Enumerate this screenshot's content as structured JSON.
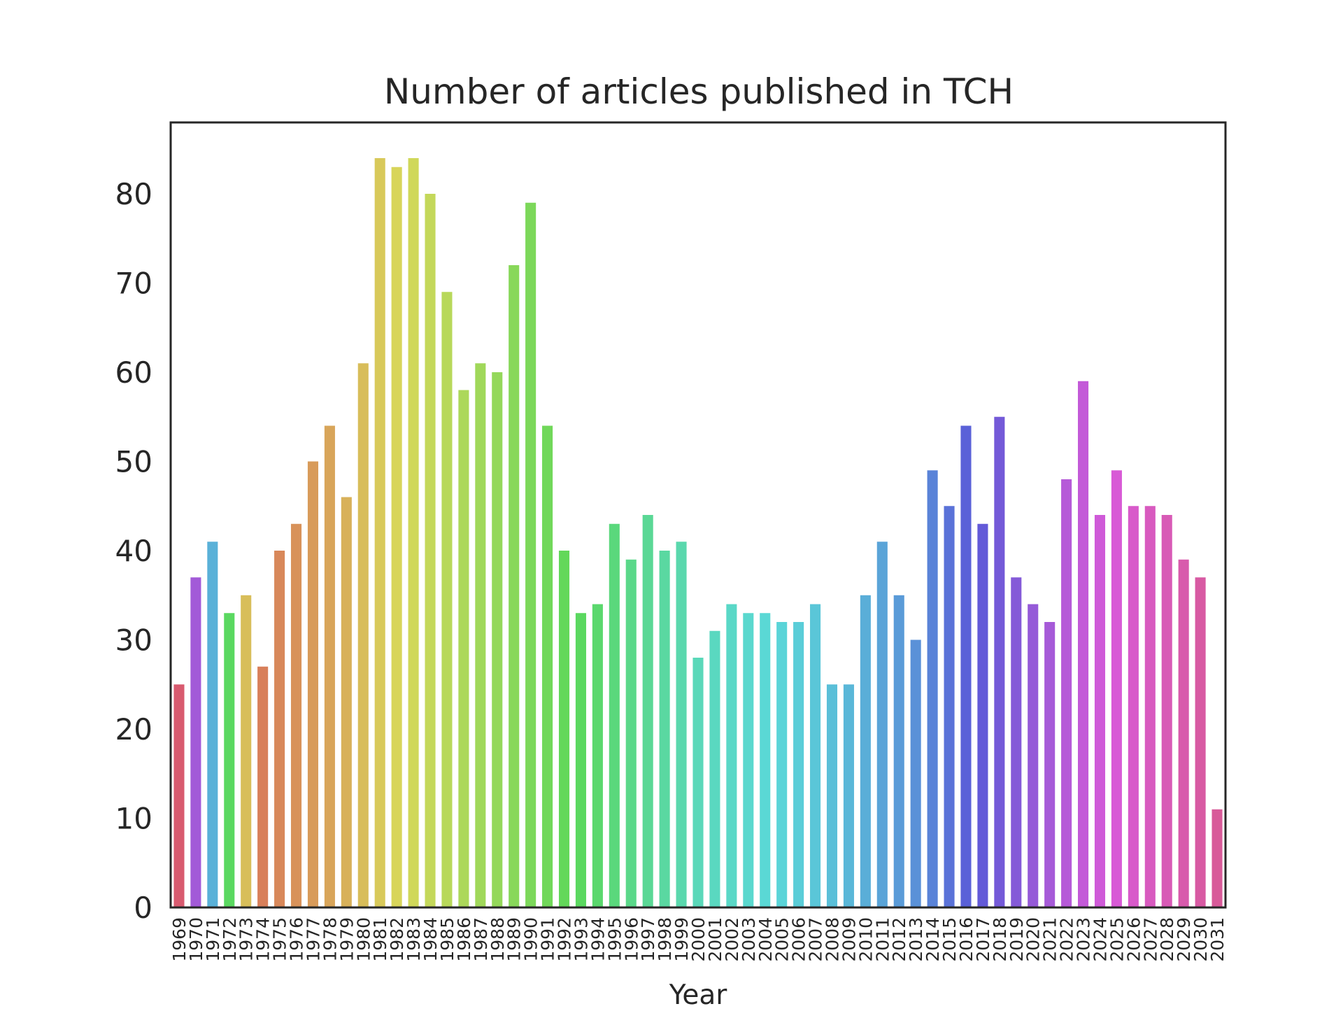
{
  "chart_data": {
    "type": "bar",
    "title": "Number of articles published in TCH",
    "xlabel": "Year",
    "ylabel": "",
    "ylim": [
      0,
      88
    ],
    "yticks": [
      0,
      10,
      20,
      30,
      40,
      50,
      60,
      70,
      80
    ],
    "grid": false,
    "legend": "none",
    "categories": [
      "1969",
      "1970",
      "1971",
      "1972",
      "1973",
      "1974",
      "1975",
      "1976",
      "1977",
      "1978",
      "1979",
      "1980",
      "1981",
      "1982",
      "1983",
      "1984",
      "1985",
      "1986",
      "1987",
      "1988",
      "1989",
      "1990",
      "1991",
      "1992",
      "1993",
      "1994",
      "1995",
      "1996",
      "1997",
      "1998",
      "1999",
      "2000",
      "2001",
      "2002",
      "2003",
      "2004",
      "2005",
      "2006",
      "2007",
      "2008",
      "2009",
      "2010",
      "2011",
      "2012",
      "2013",
      "2014",
      "2015",
      "2016",
      "2017",
      "2018",
      "2019",
      "2020",
      "2021",
      "2022",
      "2023",
      "2024",
      "2025",
      "2026",
      "2027",
      "2028",
      "2029",
      "2030",
      "2031"
    ],
    "values": [
      25,
      37,
      41,
      33,
      35,
      27,
      40,
      43,
      50,
      54,
      46,
      61,
      84,
      83,
      84,
      80,
      69,
      58,
      61,
      60,
      72,
      79,
      54,
      40,
      33,
      34,
      43,
      39,
      44,
      40,
      41,
      28,
      31,
      34,
      33,
      33,
      32,
      32,
      34,
      25,
      25,
      35,
      41,
      35,
      30,
      49,
      45,
      54,
      43,
      55,
      37,
      34,
      32,
      48,
      59,
      44,
      49,
      45,
      45,
      44,
      39,
      37,
      11
    ]
  }
}
